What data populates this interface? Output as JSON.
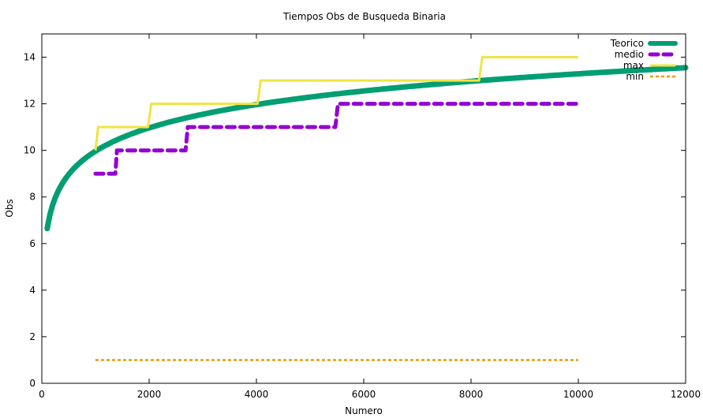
{
  "chart_data": {
    "type": "line",
    "title": "Tiempos Obs de Busqueda Binaria",
    "xlabel": "Numero",
    "ylabel": "Obs",
    "xlim": [
      0,
      12000
    ],
    "ylim": [
      0,
      15
    ],
    "xticks": [
      0,
      2000,
      4000,
      6000,
      8000,
      10000,
      12000
    ],
    "yticks": [
      0,
      2,
      4,
      6,
      8,
      10,
      12,
      14
    ],
    "legend_position": "top-right",
    "series": [
      {
        "name": "Teorico",
        "color": "#009e73",
        "style": "solid-thick",
        "function": "log2",
        "x_start": 100,
        "x_end": 12000
      },
      {
        "name": "medio",
        "color": "#9400d3",
        "style": "dashed-thick",
        "points": [
          [
            1000,
            9
          ],
          [
            1370,
            9
          ],
          [
            1400,
            10
          ],
          [
            2680,
            10
          ],
          [
            2720,
            11
          ],
          [
            5470,
            11
          ],
          [
            5520,
            12
          ],
          [
            10000,
            12
          ]
        ]
      },
      {
        "name": "max",
        "color": "#f0e442",
        "style": "solid",
        "points": [
          [
            1000,
            10
          ],
          [
            1050,
            11
          ],
          [
            1980,
            11
          ],
          [
            2040,
            12
          ],
          [
            4020,
            12
          ],
          [
            4080,
            13
          ],
          [
            8150,
            13
          ],
          [
            8210,
            14
          ],
          [
            10000,
            14
          ]
        ]
      },
      {
        "name": "min",
        "color": "#e69f00",
        "style": "dotted",
        "points": [
          [
            1000,
            1
          ],
          [
            10000,
            1
          ]
        ]
      }
    ]
  }
}
